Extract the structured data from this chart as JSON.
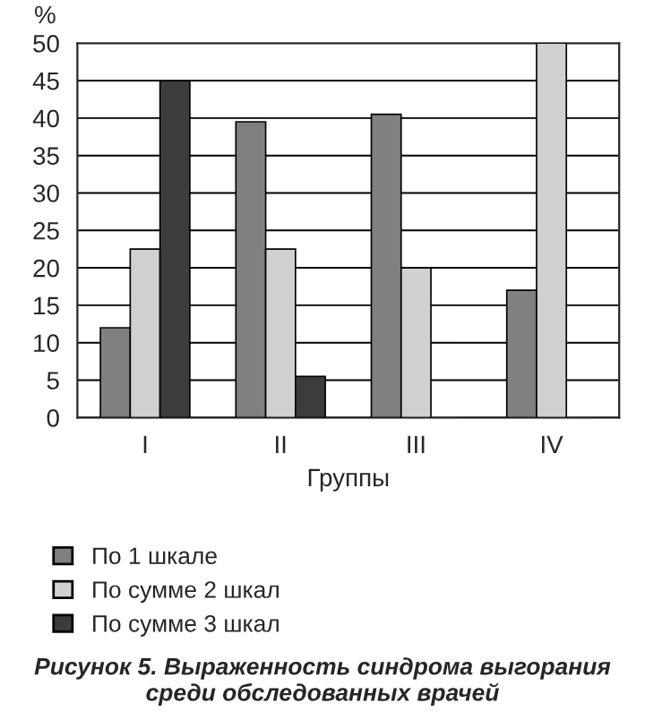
{
  "chart_data": {
    "type": "bar",
    "categories": [
      "I",
      "II",
      "III",
      "IV"
    ],
    "xlabel": "Группы",
    "ylabel": "%",
    "series": [
      {
        "name": "По 1 шкале",
        "color": "#808080",
        "values": [
          12,
          39.5,
          40.5,
          17
        ]
      },
      {
        "name": "По сумме 2 шкал",
        "color": "#d0d0d0",
        "values": [
          22.5,
          22.5,
          20,
          50
        ]
      },
      {
        "name": "По сумме 3 шкал",
        "color": "#3c3c3c",
        "values": [
          45,
          5.5,
          0,
          0
        ]
      }
    ],
    "ylim": [
      0,
      50
    ],
    "yticks": [
      0,
      5,
      10,
      15,
      20,
      25,
      30,
      35,
      40,
      45,
      50
    ],
    "grid": "y",
    "legend": "bottom",
    "annotations": [
      "Рисунок 5. Выраженность синдрома выгорания среди обследованных врачей"
    ]
  }
}
